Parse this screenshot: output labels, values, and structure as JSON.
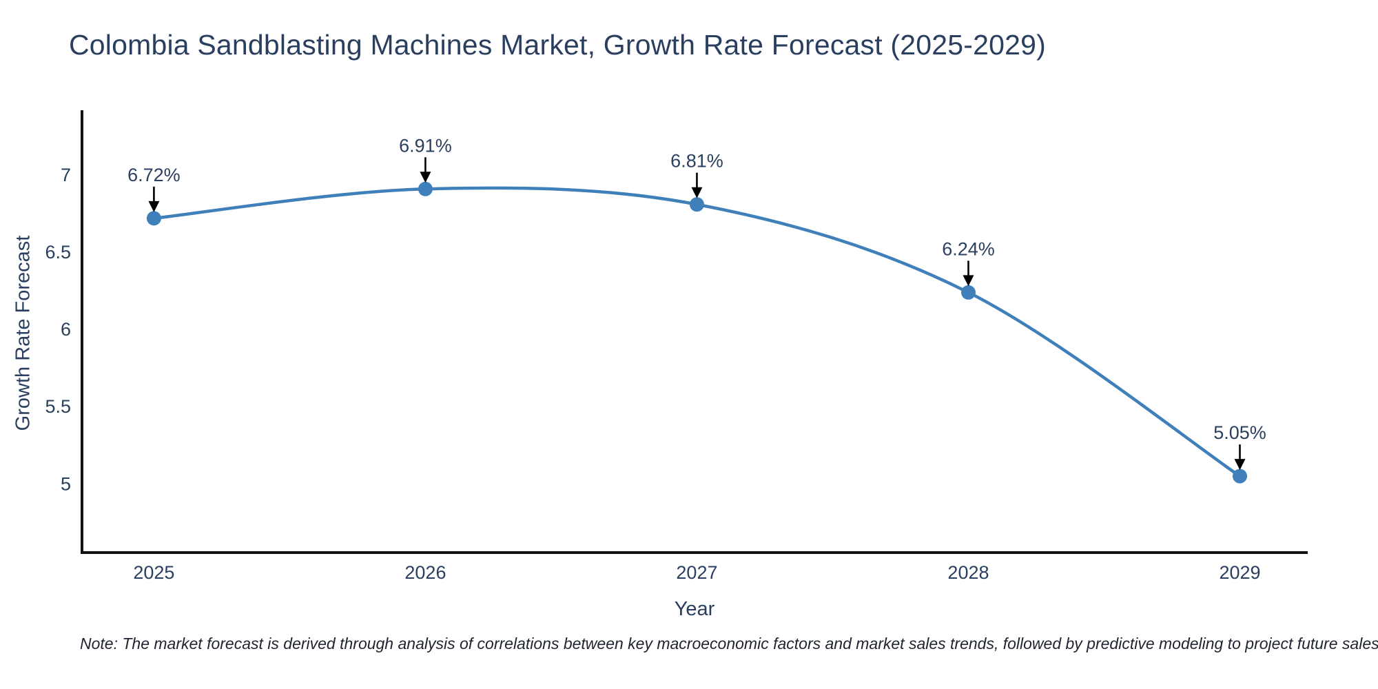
{
  "chart_data": {
    "type": "line",
    "title": "Colombia Sandblasting Machines Market, Growth Rate Forecast (2025-2029)",
    "x": [
      2025,
      2026,
      2027,
      2028,
      2029
    ],
    "series": [
      {
        "name": "Growth Rate Forecast",
        "values": [
          6.72,
          6.91,
          6.81,
          6.24,
          5.05
        ]
      }
    ],
    "point_labels": [
      "6.72%",
      "6.91%",
      "6.81%",
      "6.24%",
      "5.05%"
    ],
    "xlabel": "Year",
    "ylabel": "Growth Rate Forecast",
    "yticks": [
      5,
      5.5,
      6,
      6.5,
      7
    ],
    "xticks": [
      2025,
      2026,
      2027,
      2028,
      2029
    ],
    "ylim": [
      4.555,
      7.42
    ],
    "xlim": [
      2024.735,
      2029.25
    ],
    "grid": false,
    "legend": false,
    "line_shape": "spline",
    "colors": {
      "line": "#3f7fba",
      "marker": "#3f7fba",
      "axis": "#111111",
      "text": "#2a3f5f",
      "annotation_arrow": "#000000"
    }
  },
  "note": {
    "text": "Note: The market forecast is derived through analysis of correlations between key macroeconomic factors and market sales trends, followed by predictive modeling to project future sales"
  }
}
